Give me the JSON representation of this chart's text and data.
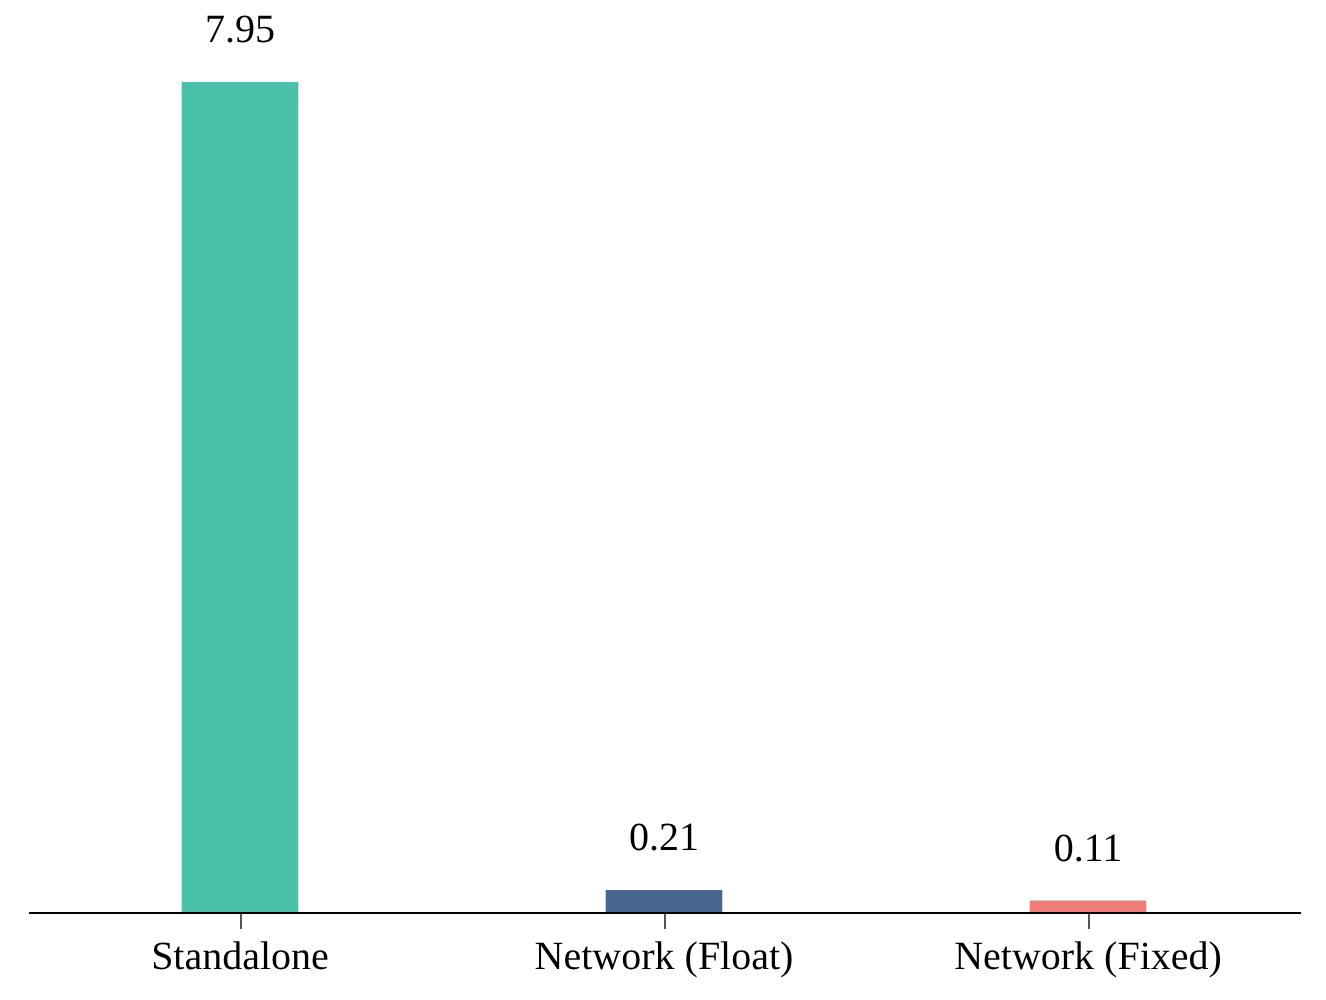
{
  "chart_data": {
    "type": "bar",
    "categories": [
      "Standalone",
      "Network (Float)",
      "Network (Fixed)"
    ],
    "values": [
      7.95,
      0.21,
      0.11
    ],
    "colors": [
      "#4bc0aa",
      "#476791",
      "#f07b7b"
    ],
    "data_labels": true,
    "grid": false,
    "legend": false
  }
}
